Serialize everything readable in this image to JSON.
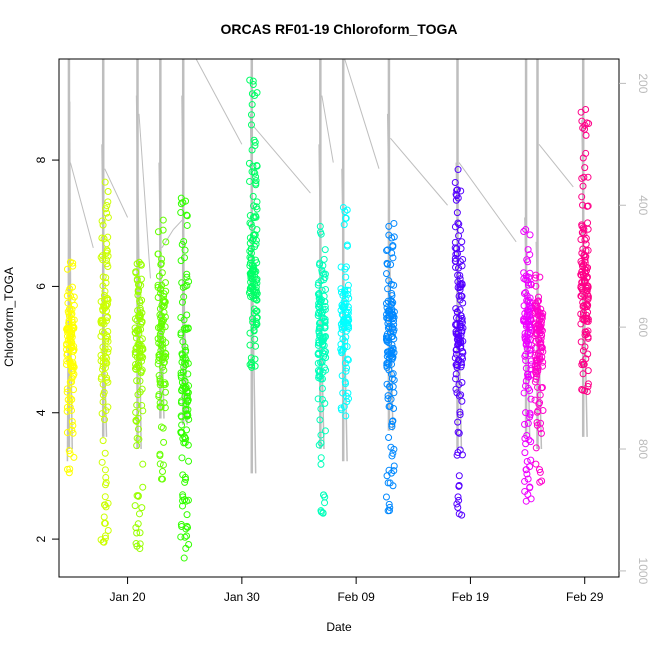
{
  "chart_data": {
    "type": "scatter",
    "title": "ORCAS RF01-19 Chloroform_TOGA",
    "xlabel": "Date",
    "ylabel": "Chloroform_TOGA",
    "xlim": [
      "2016-01-14",
      "2016-03-03"
    ],
    "ylim": [
      1.4,
      9.6
    ],
    "y2lim": [
      1010,
      160
    ],
    "x_ticks": [
      {
        "date": "2016-01-20",
        "label": "Jan 20"
      },
      {
        "date": "2016-01-30",
        "label": "Jan 30"
      },
      {
        "date": "2016-02-09",
        "label": "Feb 09"
      },
      {
        "date": "2016-02-19",
        "label": "Feb 19"
      },
      {
        "date": "2016-02-29",
        "label": "Feb 29"
      }
    ],
    "y_ticks": [
      2,
      4,
      6,
      8
    ],
    "y2_ticks": [
      200,
      400,
      600,
      800,
      1000
    ],
    "y2_axis": "pressure",
    "grid": false,
    "legend": "none",
    "marker": "open-circle",
    "pressure_color": "#bebebe",
    "series": [
      {
        "date": "2016-01-15",
        "color": "#ffff00",
        "ymin": 3.0,
        "ymax": 6.4,
        "center": 5.1,
        "n": 110,
        "outliers": [
          3.05,
          3.35,
          3.4
        ],
        "pressure": [
          [
            0.0,
            820
          ],
          [
            0.35,
            230
          ],
          [
            0.55,
            620
          ],
          [
            0.8,
            800
          ]
        ]
      },
      {
        "date": "2016-01-18",
        "color": "#ccff00",
        "ymin": 1.9,
        "ymax": 7.7,
        "center": 5.5,
        "n": 110,
        "outliers": [
          1.95,
          2.25,
          2.35,
          7.65
        ],
        "pressure": [
          [
            0.05,
            300
          ],
          [
            0.45,
            650
          ],
          [
            0.8,
            780
          ]
        ]
      },
      {
        "date": "2016-01-21",
        "color": "#99ff00",
        "ymin": 1.85,
        "ymax": 6.5,
        "center": 5.2,
        "n": 110,
        "outliers": [
          1.85,
          2.1,
          2.4
        ],
        "pressure": [
          [
            0.1,
            220
          ],
          [
            0.5,
            520
          ],
          [
            0.85,
            800
          ]
        ]
      },
      {
        "date": "2016-01-23",
        "color": "#66ff00",
        "ymin": 2.9,
        "ymax": 7.1,
        "center": 5.1,
        "n": 100,
        "outliers": [
          2.95,
          7.05
        ],
        "pressure": [
          [
            0.05,
            330
          ],
          [
            0.4,
            560
          ],
          [
            0.85,
            750
          ]
        ]
      },
      {
        "date": "2016-01-25",
        "color": "#33ff00",
        "ymin": 1.7,
        "ymax": 7.4,
        "center": 4.3,
        "n": 120,
        "outliers": [
          1.7,
          2.05,
          7.35
        ],
        "pressure": [
          [
            0.05,
            220
          ],
          [
            0.45,
            580
          ],
          [
            0.9,
            760
          ]
        ]
      },
      {
        "date": "2016-01-31",
        "color": "#00ff66",
        "ymin": 4.7,
        "ymax": 9.3,
        "center": 6.0,
        "n": 130,
        "outliers": [
          9.25,
          9.05,
          4.75
        ],
        "pressure": [
          [
            0.05,
            250
          ],
          [
            0.5,
            600
          ],
          [
            0.9,
            840
          ]
        ]
      },
      {
        "date": "2016-02-06",
        "color": "#00ffbb",
        "ymin": 2.4,
        "ymax": 7.0,
        "center": 5.3,
        "n": 120,
        "outliers": [
          2.45,
          2.7,
          6.95
        ],
        "pressure": [
          [
            0.05,
            300
          ],
          [
            0.5,
            640
          ],
          [
            0.85,
            800
          ]
        ]
      },
      {
        "date": "2016-02-08",
        "color": "#00ffff",
        "ymin": 3.9,
        "ymax": 7.3,
        "center": 5.4,
        "n": 90,
        "outliers": [
          3.95,
          4.1,
          7.25
        ],
        "pressure": [
          [
            0.05,
            340
          ],
          [
            0.4,
            560
          ],
          [
            0.9,
            820
          ]
        ]
      },
      {
        "date": "2016-02-12",
        "color": "#0088ff",
        "ymin": 2.4,
        "ymax": 7.0,
        "center": 5.3,
        "n": 130,
        "outliers": [
          2.45,
          2.55,
          6.95
        ],
        "pressure": [
          [
            0.05,
            250
          ],
          [
            0.45,
            520
          ],
          [
            0.9,
            770
          ]
        ]
      },
      {
        "date": "2016-02-18",
        "color": "#5500ff",
        "ymin": 2.35,
        "ymax": 7.85,
        "center": 5.5,
        "n": 130,
        "outliers": [
          2.4,
          2.5,
          7.85,
          7.4
        ],
        "pressure": [
          [
            0.05,
            330
          ],
          [
            0.5,
            600
          ],
          [
            0.9,
            800
          ]
        ]
      },
      {
        "date": "2016-02-24",
        "color": "#ee00ff",
        "ymin": 2.6,
        "ymax": 6.9,
        "center": 5.3,
        "n": 120,
        "outliers": [
          2.6,
          3.1,
          6.9
        ],
        "pressure": [
          [
            0.05,
            420
          ],
          [
            0.5,
            600
          ],
          [
            0.85,
            780
          ]
        ]
      },
      {
        "date": "2016-02-25",
        "color": "#ff00cc",
        "ymin": 2.9,
        "ymax": 6.2,
        "center": 5.2,
        "n": 110,
        "outliers": [
          2.9,
          3.1
        ],
        "pressure": [
          [
            0.05,
            460
          ],
          [
            0.55,
            650
          ],
          [
            0.9,
            800
          ]
        ]
      },
      {
        "date": "2016-02-29",
        "color": "#ff0088",
        "ymin": 4.3,
        "ymax": 8.8,
        "center": 5.9,
        "n": 130,
        "outliers": [
          8.8,
          8.55,
          4.35
        ],
        "pressure": [
          [
            0.05,
            260
          ],
          [
            0.45,
            560
          ],
          [
            0.9,
            780
          ]
        ]
      }
    ],
    "connectors": [
      [
        [
          "2016-01-15",
          330
        ],
        [
          "2016-01-17",
          470
        ]
      ],
      [
        [
          "2016-01-18",
          340
        ],
        [
          "2016-01-20",
          420
        ]
      ],
      [
        [
          "2016-01-21",
          250
        ],
        [
          "2016-01-22",
          520
        ]
      ],
      [
        [
          "2016-01-23",
          470
        ],
        [
          "2016-01-24",
          440
        ]
      ],
      [
        [
          "2016-01-24",
          440
        ],
        [
          "2016-01-25",
          420
        ]
      ],
      [
        [
          "2016-01-26",
          160
        ],
        [
          "2016-01-30",
          300
        ]
      ],
      [
        [
          "2016-01-31",
          270
        ],
        [
          "2016-02-05",
          380
        ]
      ],
      [
        [
          "2016-02-06",
          220
        ],
        [
          "2016-02-07",
          330
        ]
      ],
      [
        [
          "2016-02-08",
          160
        ],
        [
          "2016-02-11",
          340
        ]
      ],
      [
        [
          "2016-02-12",
          290
        ],
        [
          "2016-02-17",
          400
        ]
      ],
      [
        [
          "2016-02-18",
          330
        ],
        [
          "2016-02-23",
          460
        ]
      ],
      [
        [
          "2016-02-25",
          300
        ],
        [
          "2016-02-28",
          370
        ]
      ]
    ]
  }
}
